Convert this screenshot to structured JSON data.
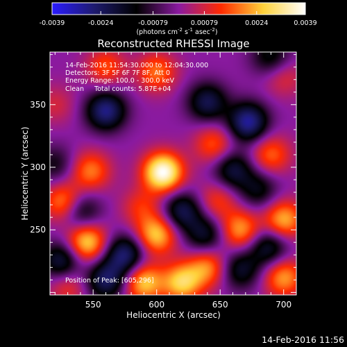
{
  "chart_data": {
    "type": "heatmap",
    "title": "Reconstructed RHESSI Image",
    "xlabel": "Heliocentric X (arcsec)",
    "ylabel": "Heliocentric Y (arcsec)",
    "xlim": [
      516,
      710
    ],
    "ylim": [
      198,
      392
    ],
    "x_ticks": [
      550,
      600,
      650,
      700
    ],
    "y_ticks": [
      250,
      300,
      350
    ],
    "colorbar": {
      "min": -0.0039,
      "max": 0.0039,
      "ticks": [
        "-0.0039",
        "-0.0024",
        "-0.00079",
        "0.00079",
        "0.0024",
        "0.0039"
      ],
      "unit_label": "(photons cm",
      "unit_sup1": "-2",
      "unit_mid": " s",
      "unit_sup2": "-1",
      "unit_end": " asec",
      "unit_sup3": "-2",
      "unit_close": ")",
      "colormap": [
        "#2a1bff",
        "#1e1b6e",
        "#000000",
        "#8a1aa0",
        "#ff2a00",
        "#ffd23a",
        "#ffffff"
      ]
    },
    "annotations": [
      "14-Feb-2016 11:54:30.000 to 12:04:30.000",
      "Detectors: 3F 5F 6F 7F 8F, Att 0",
      "Energy Range: 100.0 - 300.0 keV",
      "Clean     Total counts: 5.87E+04"
    ],
    "position_note": "Position of Peak: [605,296]",
    "peak": {
      "x": 605,
      "y": 296,
      "value": 0.0039
    },
    "sources": [
      {
        "x": 605,
        "y": 296,
        "v": 0.0039
      },
      {
        "x": 672,
        "y": 336,
        "v": -0.003
      },
      {
        "x": 560,
        "y": 345,
        "v": -0.0028
      },
      {
        "x": 640,
        "y": 352,
        "v": -0.0022
      },
      {
        "x": 600,
        "y": 376,
        "v": 0.0018
      },
      {
        "x": 560,
        "y": 380,
        "v": 0.0015
      },
      {
        "x": 700,
        "y": 372,
        "v": 0.001
      },
      {
        "x": 548,
        "y": 297,
        "v": 0.0019
      },
      {
        "x": 527,
        "y": 272,
        "v": 0.0022
      },
      {
        "x": 520,
        "y": 302,
        "v": -0.0012
      },
      {
        "x": 540,
        "y": 265,
        "v": -0.0018
      },
      {
        "x": 660,
        "y": 298,
        "v": -0.002
      },
      {
        "x": 645,
        "y": 318,
        "v": 0.0016
      },
      {
        "x": 690,
        "y": 310,
        "v": 0.0017
      },
      {
        "x": 680,
        "y": 282,
        "v": -0.0015
      },
      {
        "x": 620,
        "y": 265,
        "v": -0.0022
      },
      {
        "x": 588,
        "y": 268,
        "v": 0.0012
      },
      {
        "x": 600,
        "y": 246,
        "v": 0.0026
      },
      {
        "x": 575,
        "y": 230,
        "v": -0.0026
      },
      {
        "x": 545,
        "y": 240,
        "v": 0.0028
      },
      {
        "x": 638,
        "y": 246,
        "v": -0.0018
      },
      {
        "x": 648,
        "y": 273,
        "v": 0.0013
      },
      {
        "x": 666,
        "y": 250,
        "v": 0.0022
      },
      {
        "x": 700,
        "y": 258,
        "v": 0.0024
      },
      {
        "x": 688,
        "y": 236,
        "v": -0.002
      },
      {
        "x": 700,
        "y": 212,
        "v": 0.0022
      },
      {
        "x": 666,
        "y": 218,
        "v": -0.0018
      },
      {
        "x": 640,
        "y": 220,
        "v": 0.002
      },
      {
        "x": 620,
        "y": 208,
        "v": 0.0027
      },
      {
        "x": 590,
        "y": 208,
        "v": 0.0026
      },
      {
        "x": 560,
        "y": 210,
        "v": -0.0024
      },
      {
        "x": 525,
        "y": 225,
        "v": -0.0022
      },
      {
        "x": 530,
        "y": 205,
        "v": 0.0012
      },
      {
        "x": 520,
        "y": 350,
        "v": 0.0008
      },
      {
        "x": 690,
        "y": 388,
        "v": -0.0016
      }
    ]
  },
  "footer_timestamp": "14-Feb-2016 11:56"
}
